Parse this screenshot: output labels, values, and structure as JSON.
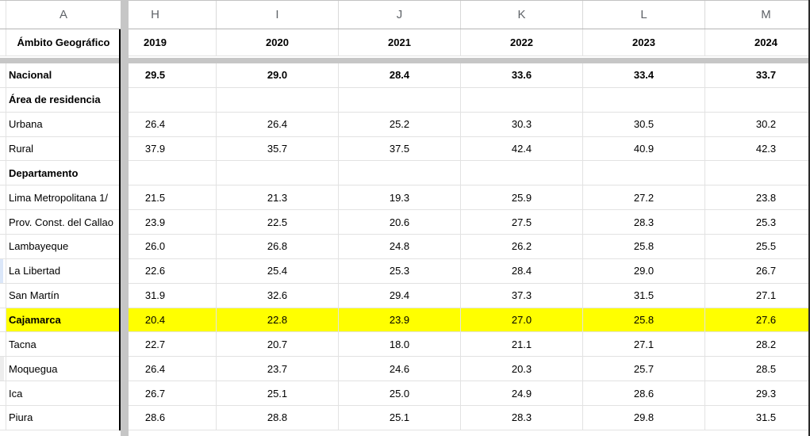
{
  "sheet": {
    "corner_label": "A",
    "col_headers": [
      "H",
      "I",
      "J",
      "K",
      "L",
      "M"
    ],
    "label_header": "Ámbito Geográfico",
    "years": [
      "2019",
      "2020",
      "2021",
      "2022",
      "2023",
      "2024"
    ],
    "rows": [
      {
        "label": "Nacional",
        "values": [
          "29.5",
          "29.0",
          "28.4",
          "33.6",
          "33.4",
          "33.7"
        ]
      },
      {
        "label": "Área de residencia",
        "values": [
          "",
          "",
          "",
          "",
          "",
          ""
        ]
      },
      {
        "label": "Urbana",
        "values": [
          "26.4",
          "26.4",
          "25.2",
          "30.3",
          "30.5",
          "30.2"
        ]
      },
      {
        "label": "Rural",
        "values": [
          "37.9",
          "35.7",
          "37.5",
          "42.4",
          "40.9",
          "42.3"
        ]
      },
      {
        "label": "Departamento",
        "values": [
          "",
          "",
          "",
          "",
          "",
          ""
        ]
      },
      {
        "label": "Lima Metropolitana 1/",
        "values": [
          "21.5",
          "21.3",
          "19.3",
          "25.9",
          "27.2",
          "23.8"
        ]
      },
      {
        "label": "Prov. Const. del Callao",
        "values": [
          "23.9",
          "22.5",
          "20.6",
          "27.5",
          "28.3",
          "25.3"
        ]
      },
      {
        "label": "Lambayeque",
        "values": [
          "26.0",
          "26.8",
          "24.8",
          "26.2",
          "25.8",
          "25.5"
        ]
      },
      {
        "label": "La Libertad",
        "values": [
          "22.6",
          "25.4",
          "25.3",
          "28.4",
          "29.0",
          "26.7"
        ]
      },
      {
        "label": "San Martín",
        "values": [
          "31.9",
          "32.6",
          "29.4",
          "37.3",
          "31.5",
          "27.1"
        ]
      },
      {
        "label": "Cajamarca",
        "values": [
          "20.4",
          "22.8",
          "23.9",
          "27.0",
          "25.8",
          "27.6"
        ]
      },
      {
        "label": "Tacna",
        "values": [
          "22.7",
          "20.7",
          "18.0",
          "21.1",
          "27.1",
          "28.2"
        ]
      },
      {
        "label": "Moquegua",
        "values": [
          "26.4",
          "23.7",
          "24.6",
          "20.3",
          "25.7",
          "28.5"
        ]
      },
      {
        "label": "Ica",
        "values": [
          "26.7",
          "25.1",
          "25.0",
          "24.9",
          "28.6",
          "29.3"
        ]
      },
      {
        "label": "Piura",
        "values": [
          "28.6",
          "28.8",
          "25.1",
          "28.3",
          "29.8",
          "31.5"
        ]
      }
    ],
    "highlighted_row": "Cajamarca",
    "colors": {
      "highlight": "#ffff00",
      "pane_divider": "#c6c6c6",
      "gridline": "#e2e2e2",
      "header_text": "#5f6368",
      "frozen_border": "#000000",
      "sliver_blue": "#dbe7f9",
      "sliver_gray": "#ededed",
      "right_edge": "#2a2a2a"
    }
  }
}
